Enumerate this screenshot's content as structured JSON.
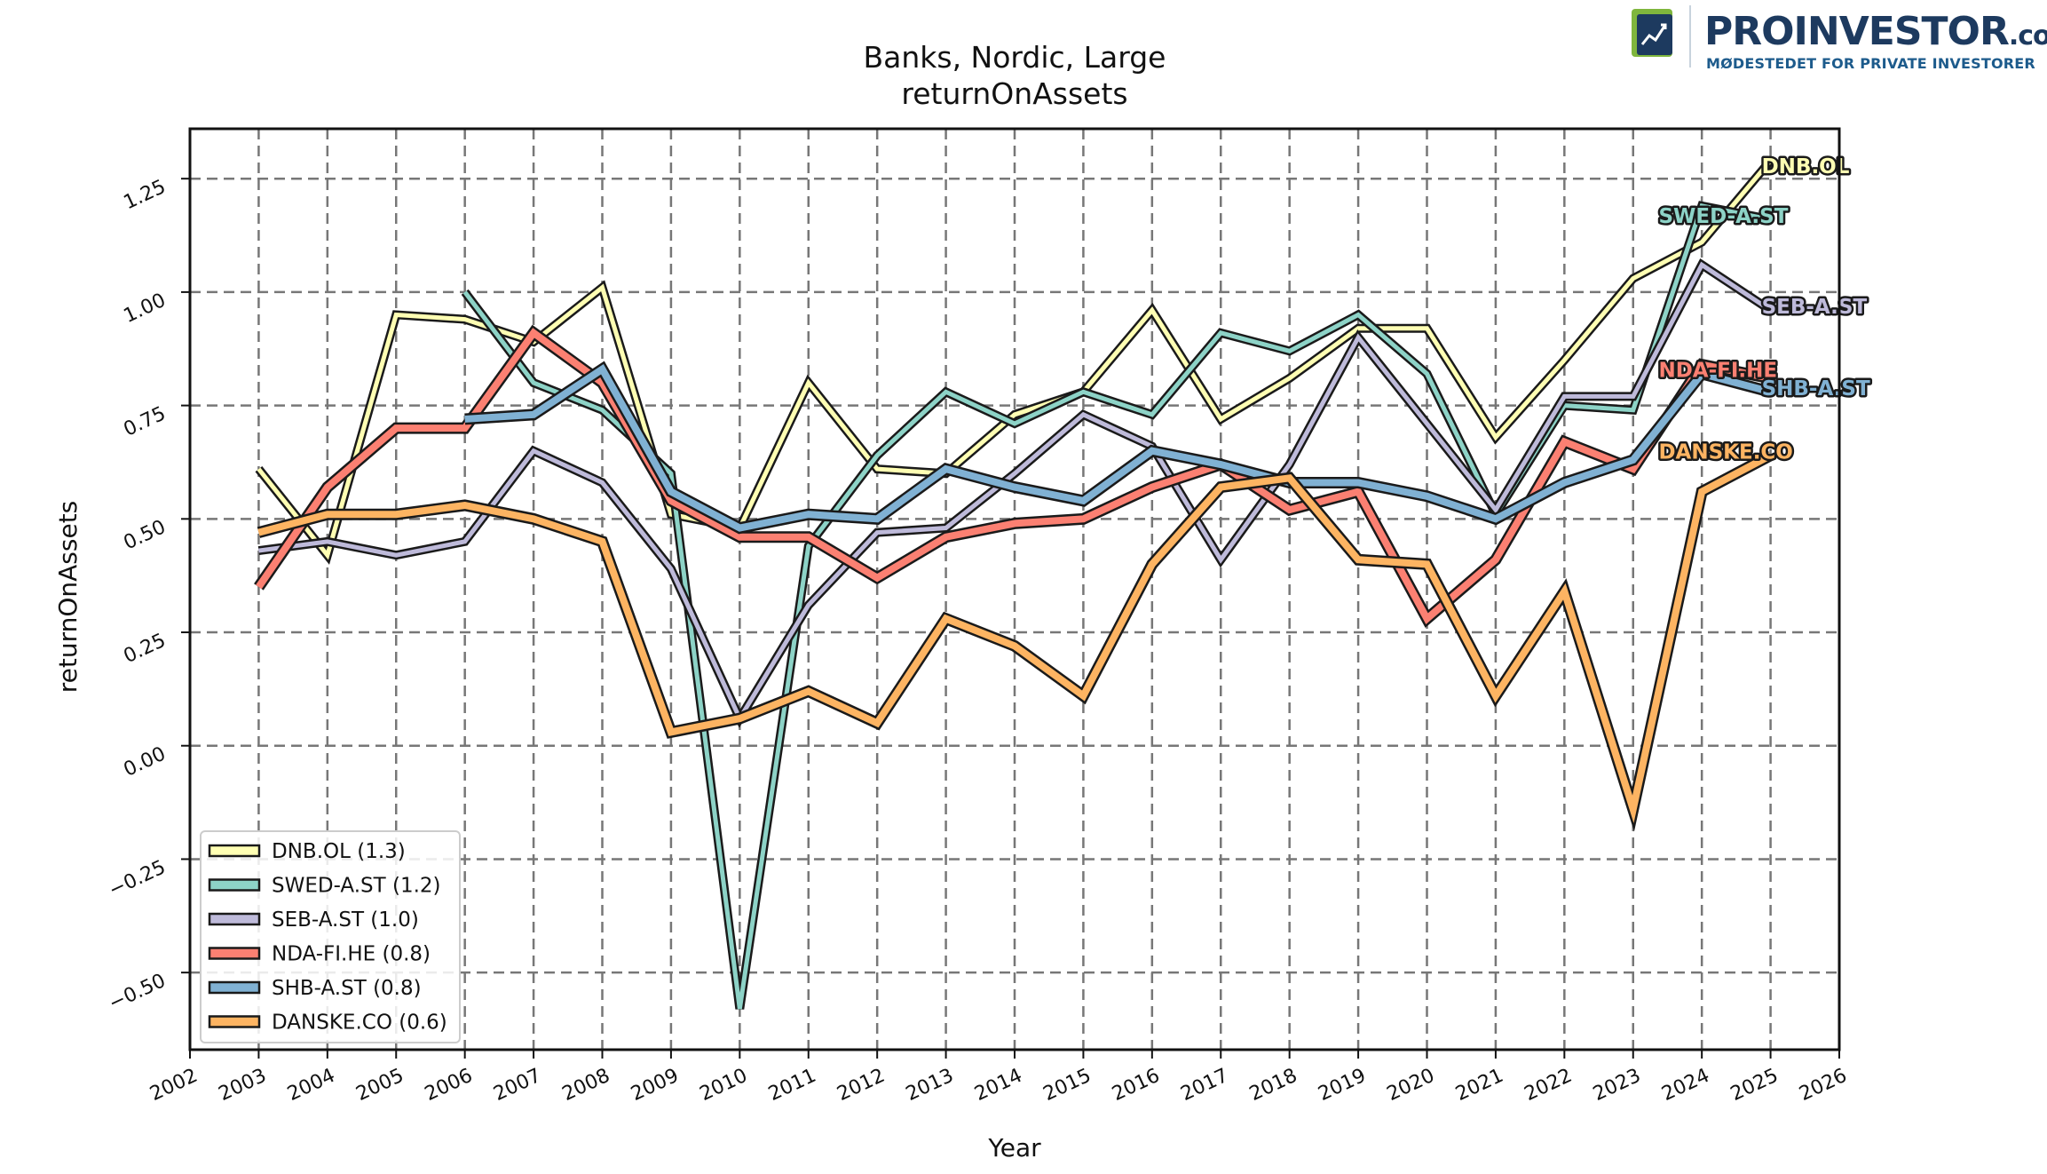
{
  "logo": {
    "name": "PROINVESTOR",
    "suffix": ".com",
    "tagline": "MØDESTEDET FOR PRIVATE INVESTORER"
  },
  "chart_data": {
    "type": "line",
    "title": "Banks, Nordic, Large",
    "subtitle": "returnOnAssets",
    "xlabel": "Year",
    "ylabel": "returnOnAssets",
    "xlim": [
      2002,
      2026
    ],
    "ylim": [
      -0.67,
      1.36
    ],
    "xticks": [
      2002,
      2003,
      2004,
      2005,
      2006,
      2007,
      2008,
      2009,
      2010,
      2011,
      2012,
      2013,
      2014,
      2015,
      2016,
      2017,
      2018,
      2019,
      2020,
      2021,
      2022,
      2023,
      2024,
      2025,
      2026
    ],
    "yticks": [
      -0.5,
      -0.25,
      0.0,
      0.25,
      0.5,
      0.75,
      1.0,
      1.25
    ],
    "ytick_labels": [
      "−0.50",
      "−0.25",
      "0.00",
      "0.25",
      "0.50",
      "0.75",
      "1.00",
      "1.25"
    ],
    "grid": true,
    "legend_position": "lower-left",
    "series": [
      {
        "name": "DNB.OL",
        "legend": "DNB.OL (1.3)",
        "color": "#ffffb3",
        "label": "DNB.OL",
        "width": "thin",
        "x": [
          2003,
          2004,
          2005,
          2006,
          2007,
          2008,
          2009,
          2010,
          2011,
          2012,
          2013,
          2014,
          2015,
          2016,
          2017,
          2018,
          2019,
          2020,
          2021,
          2022,
          2023,
          2024,
          2025
        ],
        "y": [
          0.61,
          0.42,
          0.95,
          0.94,
          0.89,
          1.01,
          0.51,
          0.48,
          0.8,
          0.61,
          0.6,
          0.73,
          0.78,
          0.96,
          0.72,
          0.81,
          0.92,
          0.92,
          0.68,
          0.85,
          1.03,
          1.11,
          1.29
        ]
      },
      {
        "name": "SWED-A.ST",
        "legend": "SWED-A.ST (1.2)",
        "color": "#8dd3c7",
        "label": "SWED-A.ST",
        "width": "thin",
        "x": [
          2006,
          2007,
          2008,
          2009,
          2010,
          2011,
          2012,
          2013,
          2014,
          2015,
          2016,
          2017,
          2018,
          2019,
          2020,
          2021,
          2022,
          2023,
          2024,
          2025
        ],
        "y": [
          1.0,
          0.8,
          0.74,
          0.6,
          -0.58,
          0.44,
          0.64,
          0.78,
          0.71,
          0.78,
          0.73,
          0.91,
          0.87,
          0.95,
          0.82,
          0.51,
          0.75,
          0.74,
          1.19,
          1.16
        ]
      },
      {
        "name": "SEB-A.ST",
        "legend": "SEB-A.ST (1.0)",
        "color": "#bebada",
        "label": "SEB-A.ST",
        "width": "thin",
        "x": [
          2003,
          2004,
          2005,
          2006,
          2007,
          2008,
          2009,
          2010,
          2011,
          2012,
          2013,
          2014,
          2015,
          2016,
          2017,
          2018,
          2019,
          2020,
          2021,
          2022,
          2023,
          2024,
          2025
        ],
        "y": [
          0.43,
          0.45,
          0.42,
          0.45,
          0.65,
          0.58,
          0.39,
          0.06,
          0.31,
          0.47,
          0.48,
          0.6,
          0.73,
          0.66,
          0.41,
          0.62,
          0.9,
          0.71,
          0.52,
          0.77,
          0.77,
          1.06,
          0.96
        ]
      },
      {
        "name": "NDA-FI.HE",
        "legend": "NDA-FI.HE (0.8)",
        "color": "#fb8072",
        "label": "NDA-FI.HE",
        "width": "thick",
        "x": [
          2003,
          2004,
          2005,
          2006,
          2007,
          2008,
          2009,
          2010,
          2011,
          2012,
          2013,
          2014,
          2015,
          2016,
          2017,
          2018,
          2019,
          2020,
          2021,
          2022,
          2023,
          2024,
          2025
        ],
        "y": [
          0.35,
          0.57,
          0.7,
          0.7,
          0.91,
          0.8,
          0.54,
          0.46,
          0.46,
          0.37,
          0.46,
          0.49,
          0.5,
          0.57,
          0.62,
          0.52,
          0.56,
          0.28,
          0.41,
          0.67,
          0.61,
          0.84,
          0.81
        ]
      },
      {
        "name": "SHB-A.ST",
        "legend": "SHB-A.ST (0.8)",
        "color": "#80b1d3",
        "label": "SHB-A.ST",
        "width": "thick",
        "x": [
          2006,
          2007,
          2008,
          2009,
          2010,
          2011,
          2012,
          2013,
          2014,
          2015,
          2016,
          2017,
          2018,
          2019,
          2020,
          2021,
          2022,
          2023,
          2024,
          2025
        ],
        "y": [
          0.72,
          0.73,
          0.83,
          0.56,
          0.48,
          0.51,
          0.5,
          0.61,
          0.57,
          0.54,
          0.65,
          0.62,
          0.58,
          0.58,
          0.55,
          0.5,
          0.58,
          0.63,
          0.82,
          0.78
        ]
      },
      {
        "name": "DANSKE.CO",
        "legend": "DANSKE.CO (0.6)",
        "color": "#fdb462",
        "label": "DANSKE.CO",
        "width": "thick",
        "x": [
          2003,
          2004,
          2005,
          2006,
          2007,
          2008,
          2009,
          2010,
          2011,
          2012,
          2013,
          2014,
          2015,
          2016,
          2017,
          2018,
          2019,
          2020,
          2021,
          2022,
          2023,
          2024,
          2025
        ],
        "y": [
          0.47,
          0.51,
          0.51,
          0.53,
          0.5,
          0.45,
          0.03,
          0.06,
          0.12,
          0.05,
          0.28,
          0.22,
          0.11,
          0.4,
          0.57,
          0.59,
          0.41,
          0.4,
          0.11,
          0.34,
          -0.14,
          0.56,
          0.64
        ]
      }
    ],
    "end_labels": [
      {
        "text": "DNB.OL",
        "series": "DNB.OL",
        "x": 2025,
        "y": 1.28,
        "color": "#ffffb3"
      },
      {
        "text": "SWED-A.ST",
        "series": "SWED-A.ST",
        "x": 2023.5,
        "y": 1.17,
        "color": "#8dd3c7"
      },
      {
        "text": "SEB-A.ST",
        "series": "SEB-A.ST",
        "x": 2025,
        "y": 0.97,
        "color": "#bebada"
      },
      {
        "text": "NDA-FI.HE",
        "series": "NDA-FI.HE",
        "x": 2023.5,
        "y": 0.83,
        "color": "#fb8072"
      },
      {
        "text": "SHB-A.ST",
        "series": "SHB-A.ST",
        "x": 2025,
        "y": 0.79,
        "color": "#80b1d3"
      },
      {
        "text": "DANSKE.CO",
        "series": "DANSKE.CO",
        "x": 2023.5,
        "y": 0.65,
        "color": "#fdb462"
      }
    ]
  }
}
